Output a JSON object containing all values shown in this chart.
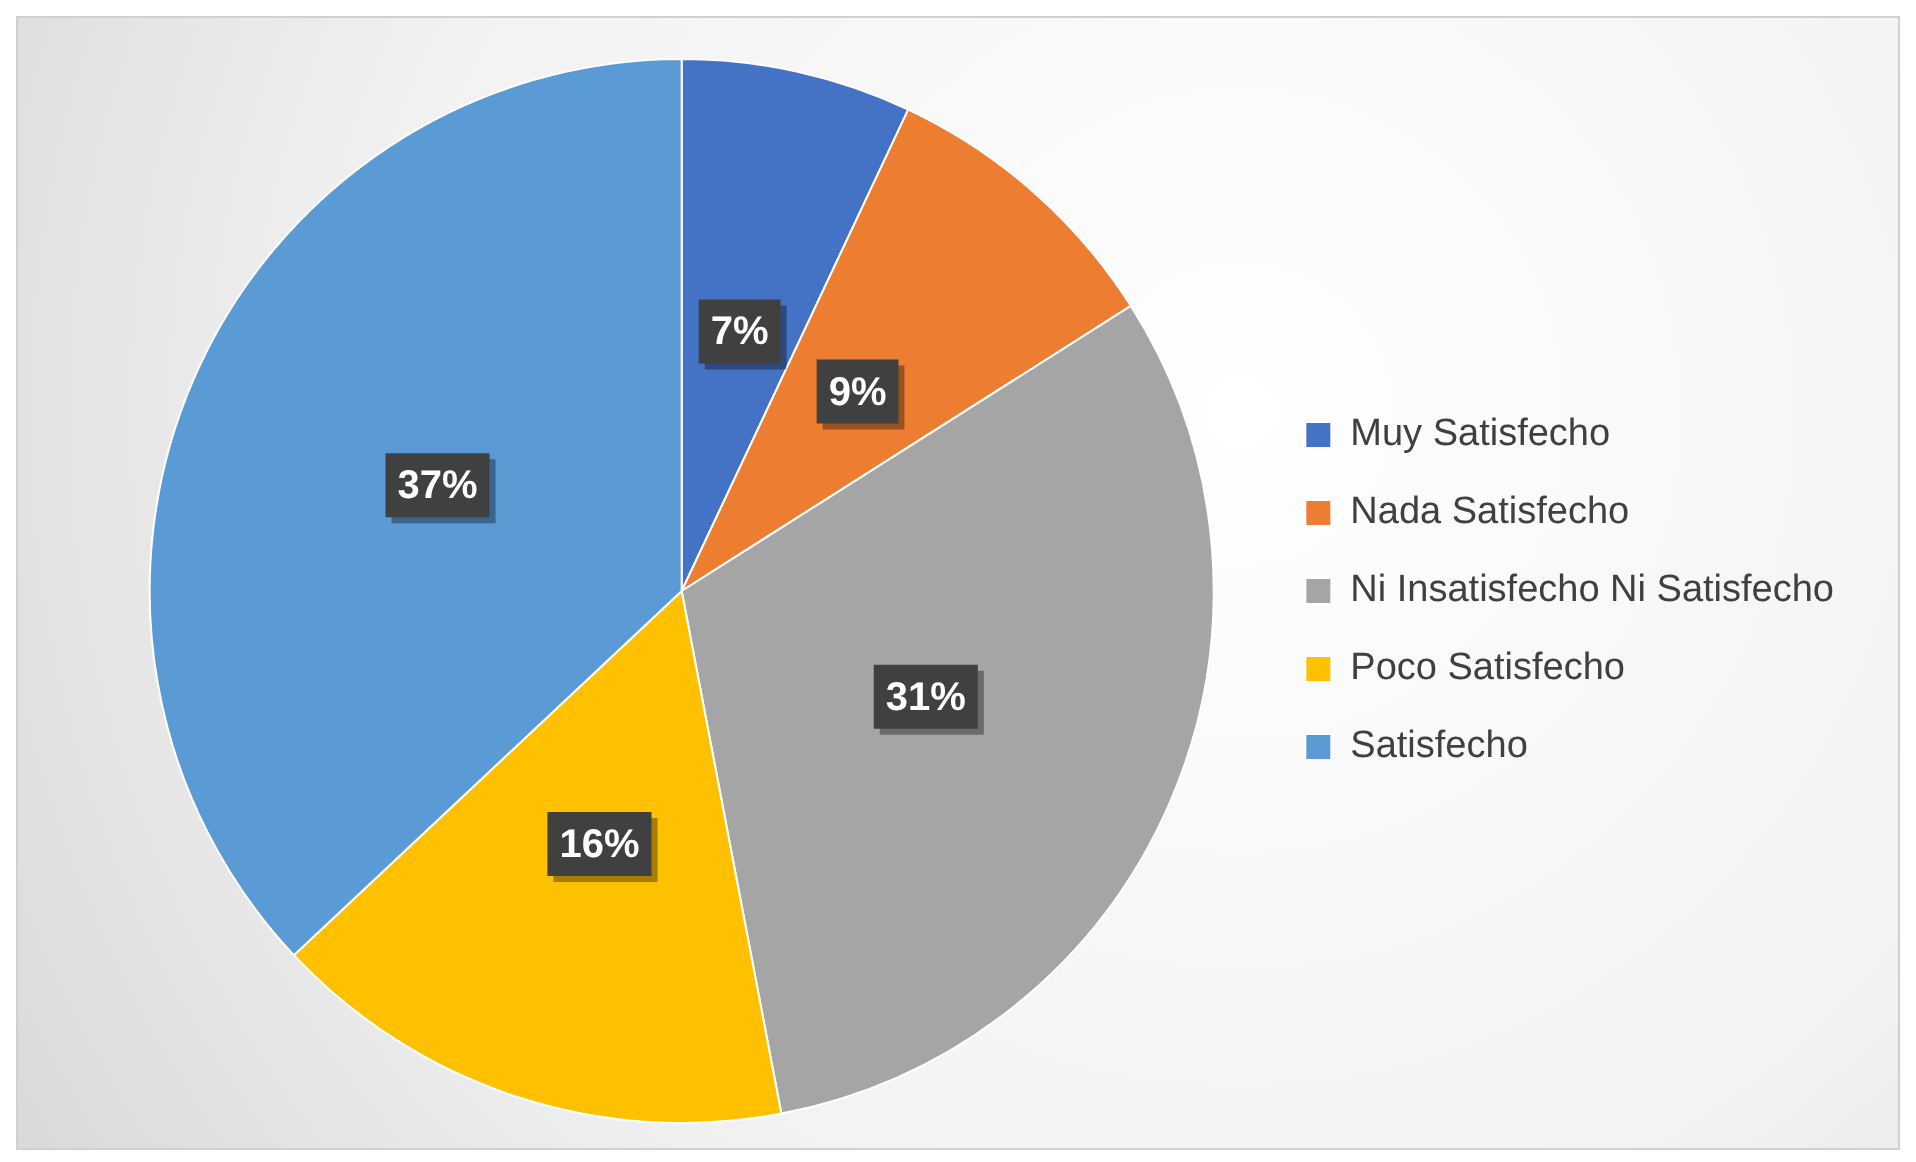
{
  "chart_data": {
    "type": "pie",
    "categories": [
      "Muy Satisfecho",
      "Nada Satisfecho",
      "Ni Insatisfecho Ni Satisfecho",
      "Poco Satisfecho",
      "Satisfecho"
    ],
    "values": [
      7,
      9,
      31,
      16,
      37
    ],
    "colors": [
      "#4472c4",
      "#ed7d31",
      "#a5a5a5",
      "#ffc000",
      "#5b9bd5"
    ],
    "value_labels": [
      "7%",
      "9%",
      "31%",
      "16%",
      "37%"
    ],
    "legend": "right"
  }
}
